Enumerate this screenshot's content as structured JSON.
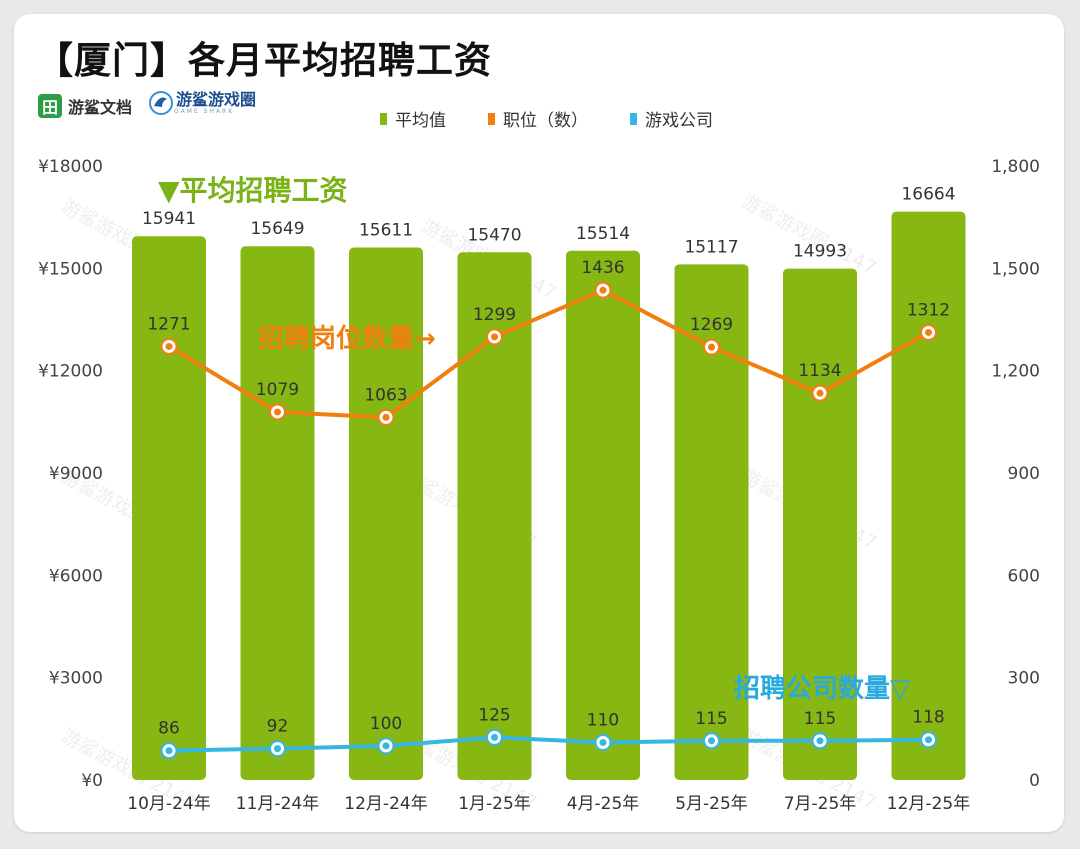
{
  "title": "【厦门】各月平均招聘工资",
  "brands": {
    "brand1": "游鲨文档",
    "brand1_icon": "table-grid-icon",
    "brand2": "游鲨游戏圈",
    "brand2_sub": "GAME SHARK",
    "brand2_icon": "shark-fin-icon"
  },
  "annotations": {
    "salary": "▼平均招聘工资",
    "positions": "招聘岗位数量→",
    "companies": "招聘公司数量▽"
  },
  "watermark": "游鲨游戏圈 2147",
  "colors": {
    "bar": "#86b713",
    "positions": "#f07f0e",
    "companies": "#36b6e2",
    "salary_note": "#7ab317",
    "companies_note": "#2aa9dd"
  },
  "chart_data": {
    "type": "bar",
    "categories": [
      "10月-24年",
      "11月-24年",
      "12月-24年",
      "1月-25年",
      "4月-25年",
      "5月-25年",
      "7月-25年",
      "12月-25年"
    ],
    "series": [
      {
        "name": "平均值",
        "type": "bar",
        "axis": "left",
        "values": [
          15941,
          15649,
          15611,
          15470,
          15514,
          15117,
          14993,
          16664
        ]
      },
      {
        "name": "职位（数）",
        "type": "line",
        "axis": "right",
        "values": [
          1271,
          1079,
          1063,
          1299,
          1436,
          1269,
          1134,
          1312
        ]
      },
      {
        "name": "游戏公司",
        "type": "line",
        "axis": "right",
        "values": [
          86,
          92,
          100,
          125,
          110,
          115,
          115,
          118
        ]
      }
    ],
    "left_axis": {
      "ylim": [
        0,
        18000
      ],
      "ticks": [
        "¥0",
        "¥3000",
        "¥6000",
        "¥9000",
        "¥12000",
        "¥15000",
        "¥18000"
      ]
    },
    "right_axis": {
      "ylim": [
        0,
        1800
      ],
      "ticks": [
        "0",
        "300",
        "600",
        "900",
        "1,200",
        "1,500",
        "1,800"
      ]
    },
    "legend_position": "top-center",
    "grid": false
  }
}
